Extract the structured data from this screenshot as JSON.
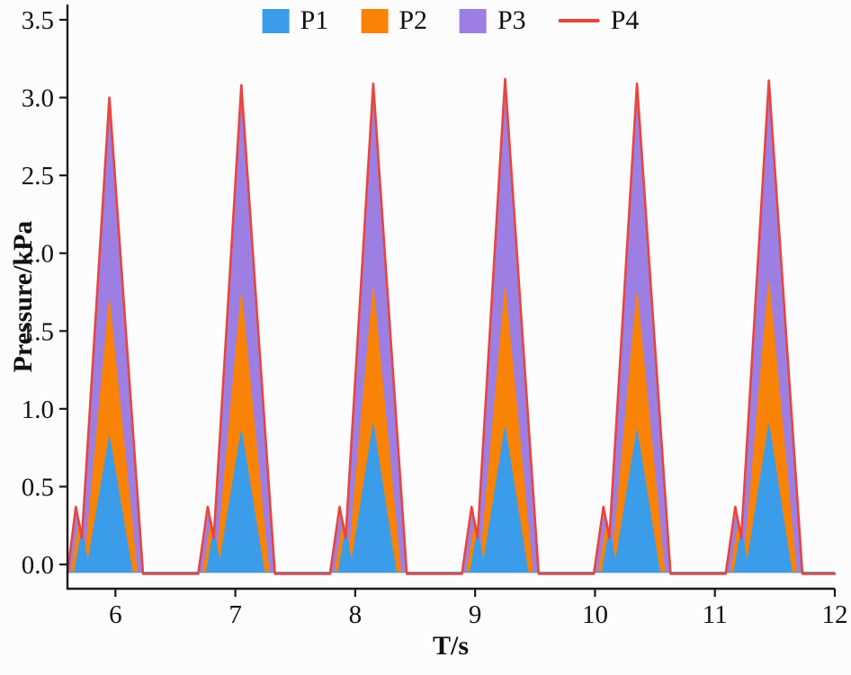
{
  "page": {
    "background": "#fcfcfc"
  },
  "chart_data": {
    "type": "area",
    "title": "",
    "xlabel": "T/s",
    "ylabel": "Pressure/kPa",
    "xlim": [
      5.6,
      12
    ],
    "ylim": [
      -0.16,
      3.5
    ],
    "grid": false,
    "legend_position": "top-center",
    "axis_color": "#1b1b1b",
    "x_ticks": [
      {
        "value": 6,
        "label": "6"
      },
      {
        "value": 7,
        "label": "7"
      },
      {
        "value": 8,
        "label": "8"
      },
      {
        "value": 9,
        "label": "9"
      },
      {
        "value": 10,
        "label": "10"
      },
      {
        "value": 11,
        "label": "11"
      },
      {
        "value": 12,
        "label": "12"
      }
    ],
    "y_ticks": [
      {
        "value": 0,
        "label": "0.0"
      },
      {
        "value": 0.5,
        "label": "0.5"
      },
      {
        "value": 1,
        "label": "1.0"
      },
      {
        "value": 1.5,
        "label": "1.5"
      },
      {
        "value": 2,
        "label": "2.0"
      },
      {
        "value": 2.5,
        "label": "2.5"
      },
      {
        "value": 3,
        "label": "3.0"
      },
      {
        "value": 3.5,
        "label": "3.5"
      }
    ],
    "legend": [
      {
        "label": "P1",
        "color": "#3b9cea",
        "marker": "square"
      },
      {
        "label": "P2",
        "color": "#f98306",
        "marker": "square"
      },
      {
        "label": "P3",
        "color": "#9d7fe3",
        "marker": "square"
      },
      {
        "label": "P4",
        "color": "#e8453f",
        "marker": "line"
      }
    ],
    "series": [
      {
        "name": "P3",
        "type": "area",
        "color": "#9d7fe3",
        "points": [
          [
            5.6,
            -0.05
          ],
          [
            5.68,
            0.34
          ],
          [
            5.73,
            0.14
          ],
          [
            5.95,
            2.96
          ],
          [
            6.22,
            -0.05
          ],
          [
            6.7,
            -0.05
          ],
          [
            6.78,
            0.34
          ],
          [
            6.83,
            0.14
          ],
          [
            7.05,
            3.04
          ],
          [
            7.32,
            -0.05
          ],
          [
            7.8,
            -0.05
          ],
          [
            7.88,
            0.34
          ],
          [
            7.93,
            0.14
          ],
          [
            8.15,
            3.05
          ],
          [
            8.42,
            -0.05
          ],
          [
            8.9,
            -0.05
          ],
          [
            8.98,
            0.34
          ],
          [
            9.03,
            0.14
          ],
          [
            9.25,
            3.08
          ],
          [
            9.52,
            -0.05
          ],
          [
            10.0,
            -0.05
          ],
          [
            10.08,
            0.34
          ],
          [
            10.13,
            0.14
          ],
          [
            10.35,
            3.05
          ],
          [
            10.62,
            -0.05
          ],
          [
            11.1,
            -0.05
          ],
          [
            11.18,
            0.34
          ],
          [
            11.23,
            0.14
          ],
          [
            11.45,
            3.07
          ],
          [
            11.72,
            -0.05
          ],
          [
            12,
            -0.05
          ]
        ]
      },
      {
        "name": "P2",
        "type": "area",
        "color": "#f98306",
        "points": [
          [
            5.6,
            -0.05
          ],
          [
            5.63,
            -0.05
          ],
          [
            5.7,
            0.28
          ],
          [
            5.75,
            0.07
          ],
          [
            5.95,
            1.7
          ],
          [
            6.18,
            -0.05
          ],
          [
            6.73,
            -0.05
          ],
          [
            6.8,
            0.28
          ],
          [
            6.85,
            0.07
          ],
          [
            7.05,
            1.74
          ],
          [
            7.28,
            -0.05
          ],
          [
            7.83,
            -0.05
          ],
          [
            7.9,
            0.28
          ],
          [
            7.95,
            0.07
          ],
          [
            8.15,
            1.78
          ],
          [
            8.38,
            -0.05
          ],
          [
            8.93,
            -0.05
          ],
          [
            9.0,
            0.28
          ],
          [
            9.05,
            0.07
          ],
          [
            9.25,
            1.78
          ],
          [
            9.48,
            -0.05
          ],
          [
            10.03,
            -0.05
          ],
          [
            10.1,
            0.28
          ],
          [
            10.15,
            0.07
          ],
          [
            10.35,
            1.75
          ],
          [
            10.58,
            -0.05
          ],
          [
            11.13,
            -0.05
          ],
          [
            11.2,
            0.28
          ],
          [
            11.25,
            0.07
          ],
          [
            11.45,
            1.82
          ],
          [
            11.68,
            -0.05
          ],
          [
            12,
            -0.05
          ]
        ]
      },
      {
        "name": "P1",
        "type": "area",
        "color": "#3b9cea",
        "points": [
          [
            5.6,
            -0.05
          ],
          [
            5.66,
            -0.05
          ],
          [
            5.72,
            0.22
          ],
          [
            5.77,
            0.01
          ],
          [
            5.95,
            0.82
          ],
          [
            6.14,
            -0.05
          ],
          [
            6.76,
            -0.05
          ],
          [
            6.82,
            0.22
          ],
          [
            6.87,
            0.01
          ],
          [
            7.05,
            0.86
          ],
          [
            7.24,
            -0.05
          ],
          [
            7.86,
            -0.05
          ],
          [
            7.92,
            0.22
          ],
          [
            7.97,
            0.01
          ],
          [
            8.15,
            0.9
          ],
          [
            8.34,
            -0.05
          ],
          [
            8.96,
            -0.05
          ],
          [
            9.02,
            0.22
          ],
          [
            9.07,
            0.01
          ],
          [
            9.25,
            0.88
          ],
          [
            9.44,
            -0.05
          ],
          [
            10.06,
            -0.05
          ],
          [
            10.12,
            0.22
          ],
          [
            10.17,
            0.01
          ],
          [
            10.35,
            0.86
          ],
          [
            10.54,
            -0.05
          ],
          [
            11.16,
            -0.05
          ],
          [
            11.22,
            0.22
          ],
          [
            11.27,
            0.01
          ],
          [
            11.45,
            0.9
          ],
          [
            11.64,
            -0.05
          ],
          [
            12,
            -0.05
          ]
        ]
      },
      {
        "name": "P4",
        "type": "line",
        "color": "#e8453f",
        "points": [
          [
            5.6,
            -0.06
          ],
          [
            5.67,
            0.37
          ],
          [
            5.72,
            0.17
          ],
          [
            5.95,
            3.0
          ],
          [
            6.23,
            -0.06
          ],
          [
            6.69,
            -0.06
          ],
          [
            6.77,
            0.37
          ],
          [
            6.82,
            0.17
          ],
          [
            7.05,
            3.08
          ],
          [
            7.33,
            -0.06
          ],
          [
            7.79,
            -0.06
          ],
          [
            7.87,
            0.37
          ],
          [
            7.92,
            0.17
          ],
          [
            8.15,
            3.09
          ],
          [
            8.43,
            -0.06
          ],
          [
            8.89,
            -0.06
          ],
          [
            8.97,
            0.37
          ],
          [
            9.02,
            0.17
          ],
          [
            9.25,
            3.12
          ],
          [
            9.53,
            -0.06
          ],
          [
            9.99,
            -0.06
          ],
          [
            10.07,
            0.37
          ],
          [
            10.12,
            0.17
          ],
          [
            10.35,
            3.09
          ],
          [
            10.63,
            -0.06
          ],
          [
            11.09,
            -0.06
          ],
          [
            11.17,
            0.37
          ],
          [
            11.22,
            0.17
          ],
          [
            11.45,
            3.11
          ],
          [
            11.73,
            -0.06
          ],
          [
            12,
            -0.06
          ]
        ]
      }
    ]
  }
}
